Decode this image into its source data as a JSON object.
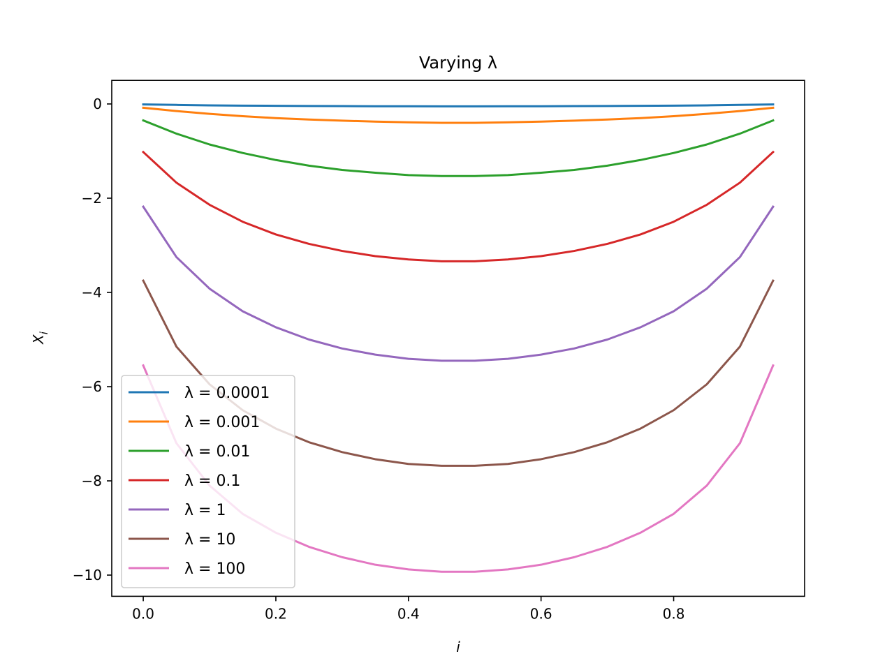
{
  "chart_data": {
    "type": "line",
    "title": "Varying λ",
    "xlabel": "i",
    "ylabel": "X_i",
    "xlim": [
      -0.0475,
      0.9975
    ],
    "ylim": [
      -10.45,
      0.5
    ],
    "xticks": [
      0.0,
      0.2,
      0.4,
      0.6,
      0.8
    ],
    "xtick_labels": [
      "0.0",
      "0.2",
      "0.4",
      "0.6",
      "0.8"
    ],
    "yticks": [
      0,
      -2,
      -4,
      -6,
      -8,
      -10
    ],
    "ytick_labels": [
      "0",
      "−2",
      "−4",
      "−6",
      "−8",
      "−10"
    ],
    "grid": false,
    "legend_position": "lower-left",
    "x": [
      0.0,
      0.05,
      0.1,
      0.15,
      0.2,
      0.25,
      0.3,
      0.35,
      0.4,
      0.45,
      0.5,
      0.55,
      0.6,
      0.65,
      0.7,
      0.75,
      0.8,
      0.85,
      0.9,
      0.95
    ],
    "series": [
      {
        "name": "λ = 0.0001",
        "color": "#1f77b4",
        "values": [
          -0.01,
          -0.02,
          -0.03,
          -0.035,
          -0.04,
          -0.043,
          -0.046,
          -0.048,
          -0.049,
          -0.05,
          -0.05,
          -0.049,
          -0.048,
          -0.046,
          -0.043,
          -0.04,
          -0.035,
          -0.03,
          -0.02,
          -0.01
        ]
      },
      {
        "name": "λ = 0.001",
        "color": "#ff7f0e",
        "values": [
          -0.08,
          -0.15,
          -0.21,
          -0.26,
          -0.3,
          -0.33,
          -0.355,
          -0.375,
          -0.39,
          -0.4,
          -0.4,
          -0.39,
          -0.375,
          -0.355,
          -0.33,
          -0.3,
          -0.26,
          -0.21,
          -0.15,
          -0.08
        ]
      },
      {
        "name": "λ = 0.01",
        "color": "#2ca02c",
        "values": [
          -0.35,
          -0.63,
          -0.86,
          -1.04,
          -1.19,
          -1.31,
          -1.4,
          -1.46,
          -1.51,
          -1.53,
          -1.53,
          -1.51,
          -1.46,
          -1.4,
          -1.31,
          -1.19,
          -1.04,
          -0.86,
          -0.63,
          -0.35
        ]
      },
      {
        "name": "λ = 0.1",
        "color": "#d62728",
        "values": [
          -1.02,
          -1.67,
          -2.14,
          -2.5,
          -2.77,
          -2.97,
          -3.12,
          -3.23,
          -3.3,
          -3.34,
          -3.34,
          -3.3,
          -3.23,
          -3.12,
          -2.97,
          -2.77,
          -2.5,
          -2.14,
          -1.67,
          -1.02
        ]
      },
      {
        "name": "λ = 1",
        "color": "#9467bd",
        "values": [
          -2.18,
          -3.25,
          -3.92,
          -4.4,
          -4.74,
          -5.0,
          -5.19,
          -5.32,
          -5.41,
          -5.45,
          -5.45,
          -5.41,
          -5.32,
          -5.19,
          -5.0,
          -4.74,
          -4.4,
          -3.92,
          -3.25,
          -2.18
        ]
      },
      {
        "name": "λ = 10",
        "color": "#8c564b",
        "values": [
          -3.75,
          -5.15,
          -5.95,
          -6.5,
          -6.89,
          -7.18,
          -7.39,
          -7.54,
          -7.64,
          -7.68,
          -7.68,
          -7.64,
          -7.54,
          -7.39,
          -7.18,
          -6.89,
          -6.5,
          -5.95,
          -5.15,
          -3.75
        ]
      },
      {
        "name": "λ = 100",
        "color": "#e377c2",
        "values": [
          -5.55,
          -7.2,
          -8.1,
          -8.7,
          -9.1,
          -9.4,
          -9.62,
          -9.78,
          -9.88,
          -9.93,
          -9.93,
          -9.88,
          -9.78,
          -9.62,
          -9.4,
          -9.1,
          -8.7,
          -8.1,
          -7.2,
          -5.55
        ]
      }
    ]
  }
}
